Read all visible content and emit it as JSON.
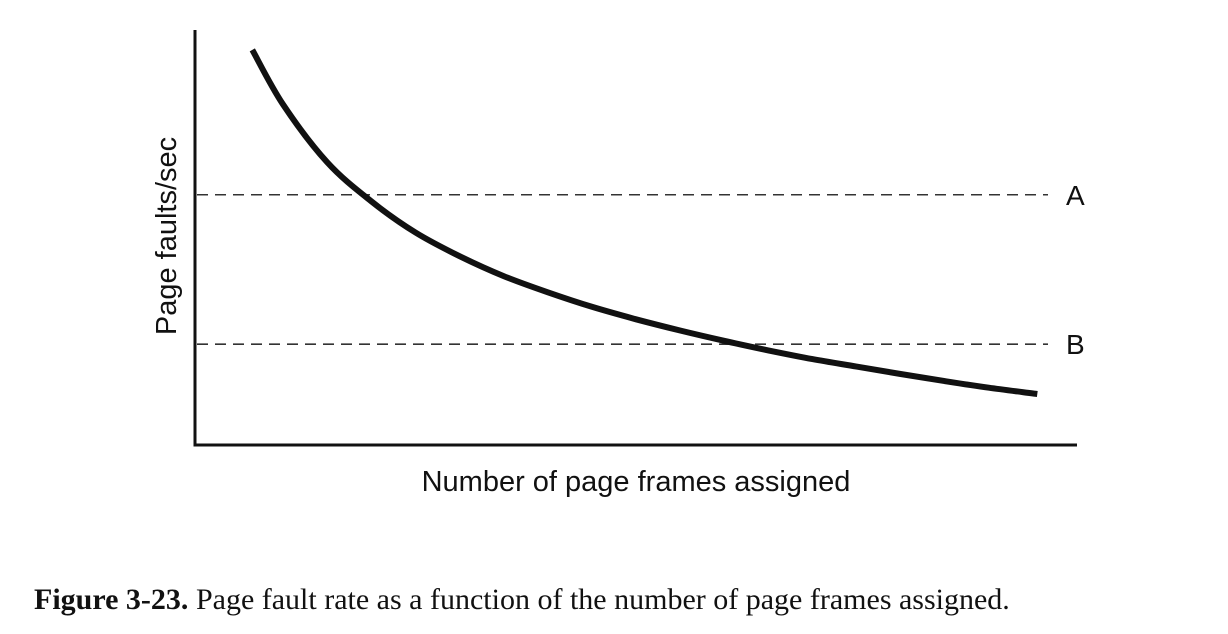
{
  "chart_data": {
    "type": "line",
    "title": "",
    "xlabel": "Number of page frames assigned",
    "ylabel": "Page faults/sec",
    "x_ticks": [],
    "y_ticks": [],
    "grid": false,
    "xlim": [
      0,
      100
    ],
    "ylim": [
      0,
      100
    ],
    "series": [
      {
        "name": "",
        "x": [
          6.5,
          10,
          15,
          20,
          25,
          30,
          35,
          40,
          45,
          50,
          55,
          60,
          65,
          70,
          75,
          80,
          85,
          90,
          95.5
        ],
        "y": [
          95.2,
          82.0,
          68.1,
          58.7,
          51.2,
          45.5,
          40.7,
          36.8,
          33.3,
          30.3,
          27.6,
          25.1,
          22.8,
          20.7,
          18.9,
          17.1,
          15.4,
          13.8,
          12.3
        ]
      }
    ],
    "reference_lines": [
      {
        "label": "A",
        "y": 60.3
      },
      {
        "label": "B",
        "y": 24.3
      }
    ]
  },
  "caption": {
    "label": "Figure 3-23.",
    "text": "Page fault rate as a function of the number of page frames assigned."
  }
}
